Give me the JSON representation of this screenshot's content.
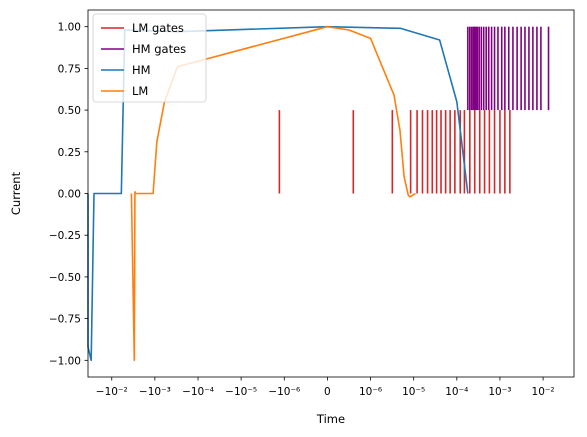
{
  "chart_data": {
    "type": "line",
    "title": "",
    "xlabel": "Time",
    "ylabel": "Current",
    "xscale": "symlog",
    "ylim": [
      -1.1,
      1.1
    ],
    "grid": false,
    "legend": "top-left",
    "x_ticks": [
      {
        "value": -0.01,
        "label": "−10⁻²"
      },
      {
        "value": -0.001,
        "label": "−10⁻³"
      },
      {
        "value": -0.0001,
        "label": "−10⁻⁴"
      },
      {
        "value": -1e-05,
        "label": "−10⁻⁵"
      },
      {
        "value": -1e-06,
        "label": "−10⁻⁶"
      },
      {
        "value": 0,
        "label": "0"
      },
      {
        "value": 1e-06,
        "label": "10⁻⁶"
      },
      {
        "value": 1e-05,
        "label": "10⁻⁵"
      },
      {
        "value": 0.0001,
        "label": "10⁻⁴"
      },
      {
        "value": 0.001,
        "label": "10⁻³"
      },
      {
        "value": 0.01,
        "label": "10⁻²"
      }
    ],
    "y_ticks": [
      {
        "value": 1.0,
        "label": "1.00"
      },
      {
        "value": 0.75,
        "label": "0.75"
      },
      {
        "value": 0.5,
        "label": "0.50"
      },
      {
        "value": 0.25,
        "label": "0.25"
      },
      {
        "value": 0.0,
        "label": "0.00"
      },
      {
        "value": -0.25,
        "label": "−0.25"
      },
      {
        "value": -0.5,
        "label": "−0.50"
      },
      {
        "value": -0.75,
        "label": "−0.75"
      },
      {
        "value": -1.0,
        "label": "−1.00"
      }
    ],
    "series": [
      {
        "name": "HM",
        "color": "#1f77b4",
        "kind": "line",
        "points": [
          [
            -0.018,
            0.0
          ],
          [
            -0.018,
            -0.92
          ],
          [
            -0.016,
            -1.0
          ],
          [
            -0.015,
            0.0
          ],
          [
            -0.006,
            0.0
          ],
          [
            -0.005,
            0.98
          ],
          [
            -0.0003,
            0.97
          ],
          [
            0.0,
            1.0
          ],
          [
            5e-06,
            0.99
          ],
          [
            4e-05,
            0.92
          ],
          [
            0.0001,
            0.55
          ],
          [
            0.00018,
            0.0
          ]
        ]
      },
      {
        "name": "LM",
        "color": "#ff7f0e",
        "kind": "line",
        "points": [
          [
            -0.0035,
            0.0
          ],
          [
            -0.003,
            -1.0
          ],
          [
            -0.0029,
            0.01
          ],
          [
            -0.0028,
            0.0
          ],
          [
            -0.0011,
            0.0
          ],
          [
            -0.0009,
            0.31
          ],
          [
            -0.0006,
            0.55
          ],
          [
            -0.0003,
            0.76
          ],
          [
            0.0,
            1.0
          ],
          [
            5e-07,
            0.98
          ],
          [
            1e-06,
            0.93
          ],
          [
            1.8e-06,
            0.77
          ],
          [
            3.5e-06,
            0.59
          ],
          [
            4.8e-06,
            0.38
          ],
          [
            6e-06,
            0.1
          ],
          [
            7.5e-06,
            -0.01
          ],
          [
            8.2e-06,
            -0.02
          ],
          [
            9.5e-06,
            -0.01
          ],
          [
            1.1e-05,
            0.0
          ]
        ]
      },
      {
        "name": "LM gates",
        "color": "#d62728",
        "kind": "gates",
        "y_range": [
          0.0,
          0.5
        ],
        "x": [
          -1.3e-06,
          6e-07,
          3.2e-06,
          8.5e-06,
          1.2e-05,
          1.6e-05,
          2.1e-05,
          2.7e-05,
          3.4e-05,
          4.3e-05,
          5.5e-05,
          7e-05,
          9e-05,
          0.00012,
          0.00015,
          0.0002,
          0.00026,
          0.00034,
          0.00044,
          0.00057,
          0.00075,
          0.001,
          0.0013,
          0.0017
        ]
      },
      {
        "name": "HM gates",
        "color": "#800080",
        "kind": "gates",
        "y_range": [
          0.5,
          1.0
        ],
        "x": [
          0.00018,
          0.0002,
          0.00022,
          0.00024,
          0.00026,
          0.00028,
          0.0003,
          0.00033,
          0.00037,
          0.00042,
          0.00048,
          0.00055,
          0.00064,
          0.00075,
          0.0009,
          0.0011,
          0.0013,
          0.0016,
          0.002,
          0.0025,
          0.0031,
          0.0038,
          0.0047,
          0.0058,
          0.0072,
          0.0089,
          0.011
        ]
      }
    ],
    "legend_entries": [
      {
        "label": "LM gates",
        "color": "#d62728"
      },
      {
        "label": "HM gates",
        "color": "#800080"
      },
      {
        "label": "HM",
        "color": "#1f77b4"
      },
      {
        "label": "LM",
        "color": "#ff7f0e"
      }
    ]
  }
}
